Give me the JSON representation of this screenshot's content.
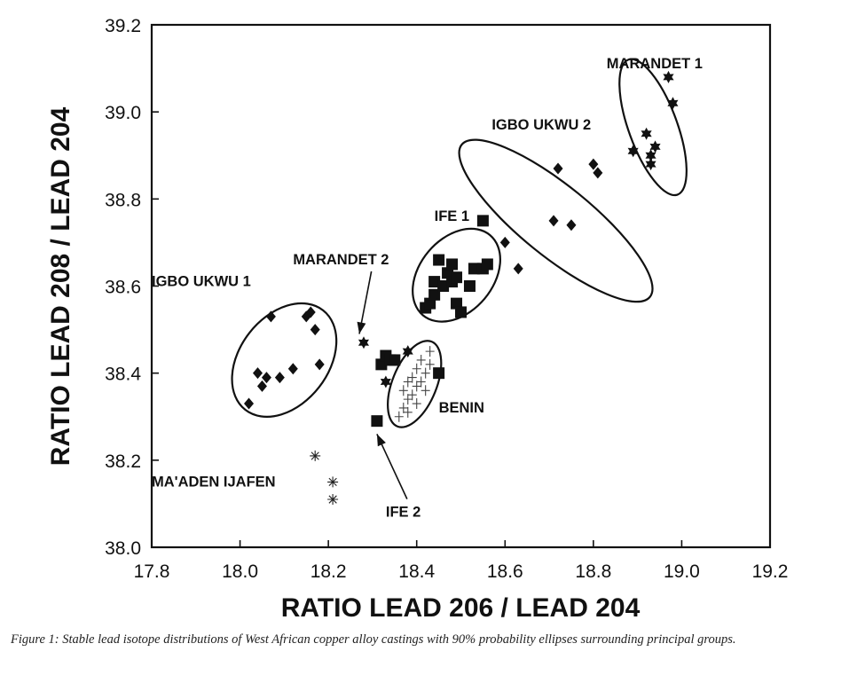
{
  "chart_data": {
    "type": "scatter",
    "xlabel": "RATIO LEAD 206 / LEAD 204",
    "ylabel": "RATIO LEAD 208 / LEAD 204",
    "xlim": [
      17.8,
      19.2
    ],
    "ylim": [
      38.0,
      39.2
    ],
    "xticks": [
      "17.8",
      "18.0",
      "18.2",
      "18.4",
      "18.6",
      "18.8",
      "19.0",
      "19.2"
    ],
    "yticks": [
      "38.0",
      "38.2",
      "38.4",
      "38.6",
      "38.8",
      "39.0",
      "39.2"
    ],
    "grid": false,
    "legend": "none",
    "series": [
      {
        "name": "IGBO UKWU 1",
        "marker": "diamond",
        "points": [
          [
            18.02,
            38.33
          ],
          [
            18.04,
            38.4
          ],
          [
            18.05,
            38.37
          ],
          [
            18.06,
            38.39
          ],
          [
            18.07,
            38.53
          ],
          [
            18.09,
            38.39
          ],
          [
            18.12,
            38.41
          ],
          [
            18.15,
            38.53
          ],
          [
            18.16,
            38.54
          ],
          [
            18.17,
            38.5
          ],
          [
            18.18,
            38.42
          ]
        ]
      },
      {
        "name": "IGBO UKWU 2",
        "marker": "diamond",
        "points": [
          [
            18.6,
            38.7
          ],
          [
            18.63,
            38.64
          ],
          [
            18.71,
            38.75
          ],
          [
            18.72,
            38.87
          ],
          [
            18.75,
            38.74
          ],
          [
            18.8,
            38.88
          ],
          [
            18.81,
            38.86
          ]
        ]
      },
      {
        "name": "MARANDET 1",
        "marker": "star",
        "points": [
          [
            18.89,
            38.91
          ],
          [
            18.92,
            38.95
          ],
          [
            18.93,
            38.9
          ],
          [
            18.94,
            38.92
          ],
          [
            18.93,
            38.88
          ],
          [
            18.97,
            39.08
          ],
          [
            18.98,
            39.02
          ]
        ]
      },
      {
        "name": "MARANDET 2",
        "marker": "star",
        "points": [
          [
            18.28,
            38.47
          ],
          [
            18.33,
            38.38
          ],
          [
            18.38,
            38.45
          ]
        ]
      },
      {
        "name": "IFE 1",
        "marker": "square",
        "points": [
          [
            18.42,
            38.55
          ],
          [
            18.43,
            38.56
          ],
          [
            18.44,
            38.58
          ],
          [
            18.44,
            38.61
          ],
          [
            18.45,
            38.66
          ],
          [
            18.46,
            38.6
          ],
          [
            18.47,
            38.63
          ],
          [
            18.48,
            38.61
          ],
          [
            18.48,
            38.65
          ],
          [
            18.49,
            38.62
          ],
          [
            18.49,
            38.56
          ],
          [
            18.5,
            38.54
          ],
          [
            18.52,
            38.6
          ],
          [
            18.53,
            38.64
          ],
          [
            18.55,
            38.64
          ],
          [
            18.55,
            38.75
          ],
          [
            18.56,
            38.65
          ]
        ]
      },
      {
        "name": "IFE 2",
        "marker": "square",
        "points": [
          [
            18.31,
            38.29
          ],
          [
            18.32,
            38.42
          ],
          [
            18.33,
            38.44
          ],
          [
            18.34,
            38.43
          ],
          [
            18.35,
            38.43
          ],
          [
            18.45,
            38.4
          ]
        ]
      },
      {
        "name": "BENIN",
        "marker": "cross",
        "points": [
          [
            18.36,
            38.3
          ],
          [
            18.37,
            38.32
          ],
          [
            18.37,
            38.36
          ],
          [
            18.38,
            38.34
          ],
          [
            18.38,
            38.38
          ],
          [
            18.39,
            38.35
          ],
          [
            18.39,
            38.39
          ],
          [
            18.4,
            38.37
          ],
          [
            18.4,
            38.41
          ],
          [
            18.41,
            38.38
          ],
          [
            18.41,
            38.43
          ],
          [
            18.42,
            38.4
          ],
          [
            18.43,
            38.42
          ],
          [
            18.43,
            38.45
          ],
          [
            18.38,
            38.31
          ],
          [
            18.4,
            38.33
          ],
          [
            18.42,
            38.36
          ]
        ]
      },
      {
        "name": "MA'ADEN IJAFEN",
        "marker": "asterisk",
        "points": [
          [
            18.17,
            38.21
          ],
          [
            18.21,
            38.15
          ],
          [
            18.21,
            38.11
          ]
        ]
      }
    ],
    "ellipses": [
      {
        "group": "IGBO UKWU 1",
        "center": [
          18.1,
          38.43
        ],
        "semi_axes": [
          0.1,
          0.145
        ],
        "rotation_deg": 38
      },
      {
        "group": "BENIN",
        "center": [
          18.395,
          38.375
        ],
        "semi_axes": [
          0.05,
          0.105
        ],
        "rotation_deg": 22
      },
      {
        "group": "IFE 1",
        "center": [
          18.49,
          38.625
        ],
        "semi_axes": [
          0.083,
          0.12
        ],
        "rotation_deg": 40
      },
      {
        "group": "IGBO UKWU 2",
        "center": [
          18.715,
          38.75
        ],
        "semi_axes": [
          0.08,
          0.278
        ],
        "rotation_deg": -51
      },
      {
        "group": "MARANDET 1",
        "center": [
          18.935,
          38.965
        ],
        "semi_axes": [
          0.055,
          0.165
        ],
        "rotation_deg": -20
      }
    ],
    "annotations": [
      {
        "text": "MARANDET 1",
        "at": [
          18.83,
          39.1
        ]
      },
      {
        "text": "IGBO UKWU 2",
        "at": [
          18.57,
          38.96
        ]
      },
      {
        "text": "IFE 1",
        "at": [
          18.44,
          38.75
        ]
      },
      {
        "text": "MARANDET 2",
        "at": [
          18.12,
          38.65
        ],
        "arrow_to": [
          18.27,
          38.49
        ]
      },
      {
        "text": "IGBO UKWU 1",
        "at": [
          17.8,
          38.6
        ]
      },
      {
        "text": "BENIN",
        "at": [
          18.45,
          38.31
        ]
      },
      {
        "text": "MA'ADEN IJAFEN",
        "at": [
          17.8,
          38.14
        ]
      },
      {
        "text": "IFE 2",
        "at": [
          18.33,
          38.07
        ],
        "arrow_to": [
          18.31,
          38.26
        ]
      }
    ]
  },
  "caption": "Figure 1: Stable lead isotope distributions of West African copper alloy castings with 90% probability ellipses surrounding principal groups."
}
